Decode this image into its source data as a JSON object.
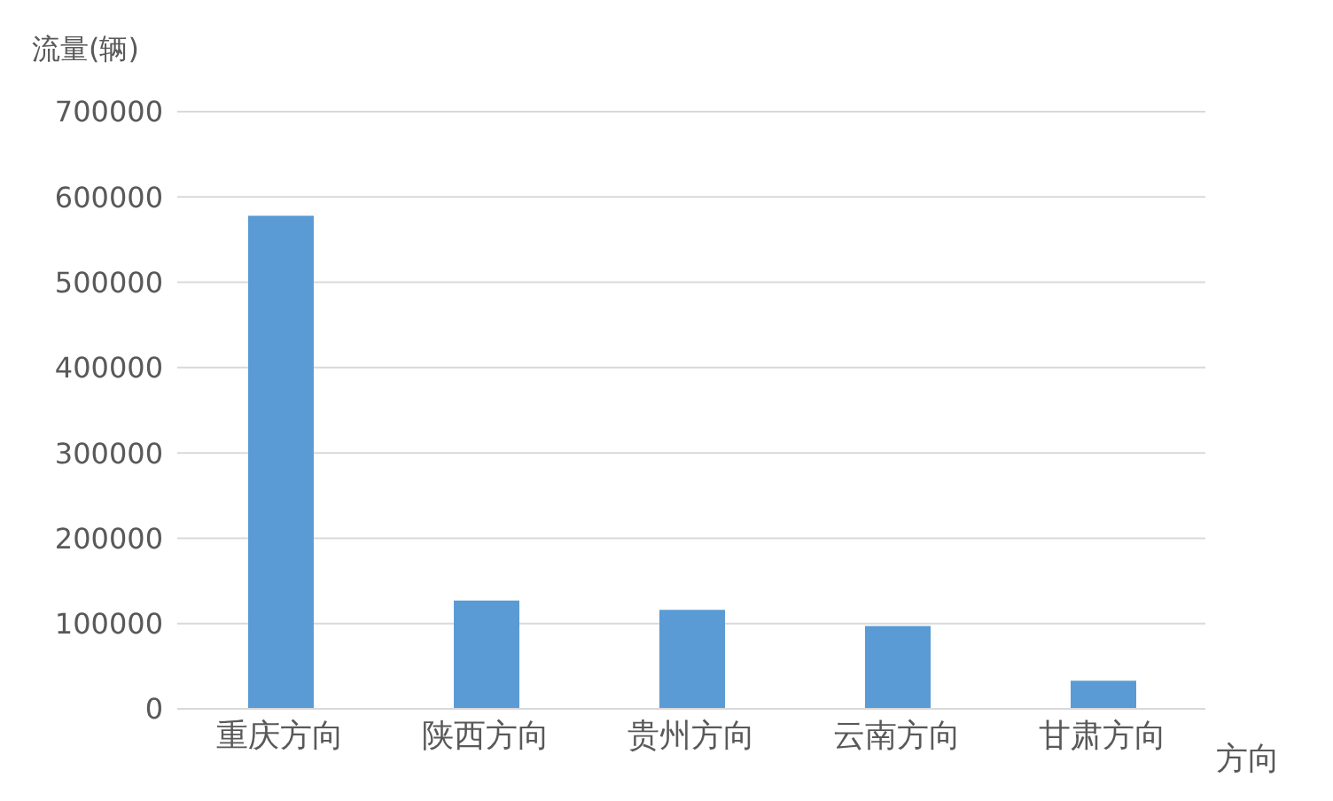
{
  "chart_data": {
    "type": "bar",
    "ylabel": "流量(辆)",
    "xlabel": "方向",
    "categories": [
      "重庆方向",
      "陕西方向",
      "贵州方向",
      "云南方向",
      "甘肃方向"
    ],
    "values": [
      578000,
      127000,
      116000,
      97000,
      33000
    ],
    "color": "#5b9bd5",
    "ylim": [
      0,
      700000
    ],
    "yticks": [
      0,
      100000,
      200000,
      300000,
      400000,
      500000,
      600000,
      700000
    ],
    "grid": "y"
  }
}
